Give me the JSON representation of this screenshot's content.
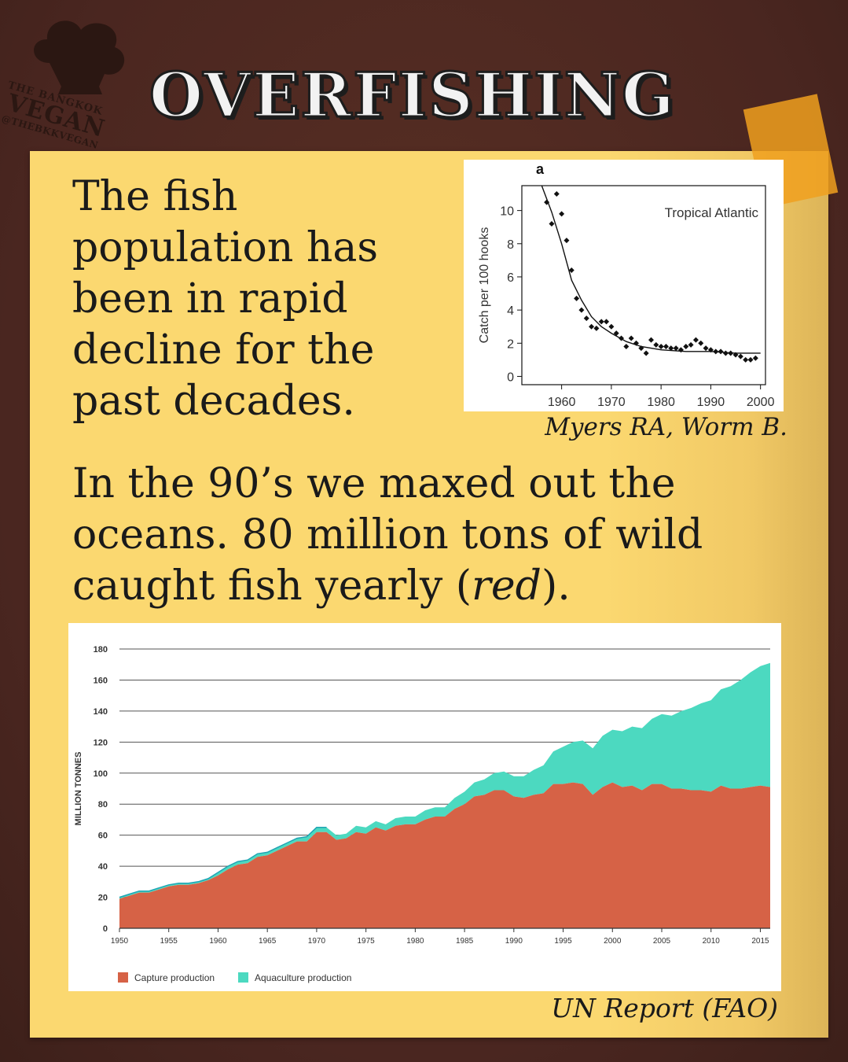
{
  "brand": {
    "line1": "THE BANGKOK",
    "line2": "VEGAN",
    "line3": "@THEBKKVEGAN"
  },
  "title": "OVERFISHING",
  "intro_text": "The fish population has been in rapid decline for the past decades.",
  "credit_top": "Myers RA, Worm B.",
  "main_text_before": "In the 90’s we maxed out the oceans. 80 million tons of wild caught fish yearly (",
  "main_text_em": "red",
  "main_text_after": ").",
  "credit_bottom": "UN Report (FAO)",
  "colors": {
    "frame": "#4a2820",
    "card": "#fbd870",
    "tape": "#f0a01e",
    "capture": "#d66246",
    "aquaculture": "#4cd9c0",
    "aquaculture_line": "#1fa4b4"
  },
  "chart_data": [
    {
      "type": "scatter",
      "panel_label": "a",
      "annotation": "Tropical Atlantic",
      "xlabel": "",
      "ylabel": "Catch per 100 hooks",
      "xlim": [
        1952,
        2001
      ],
      "ylim": [
        -0.5,
        11.5
      ],
      "xticks": [
        1960,
        1970,
        1980,
        1990,
        2000
      ],
      "yticks": [
        0,
        2,
        4,
        6,
        8,
        10
      ],
      "points": {
        "x": [
          1957,
          1958,
          1959,
          1960,
          1961,
          1962,
          1963,
          1964,
          1965,
          1966,
          1967,
          1968,
          1969,
          1970,
          1971,
          1972,
          1973,
          1974,
          1975,
          1976,
          1977,
          1978,
          1979,
          1980,
          1981,
          1982,
          1983,
          1984,
          1985,
          1986,
          1987,
          1988,
          1989,
          1990,
          1991,
          1992,
          1993,
          1994,
          1995,
          1996,
          1997,
          1998,
          1999
        ],
        "y": [
          10.5,
          9.2,
          11.0,
          9.8,
          8.2,
          6.4,
          4.7,
          4.0,
          3.5,
          3.0,
          2.9,
          3.3,
          3.3,
          3.0,
          2.6,
          2.3,
          1.8,
          2.3,
          2.0,
          1.7,
          1.4,
          2.2,
          1.9,
          1.8,
          1.8,
          1.7,
          1.7,
          1.6,
          1.8,
          1.9,
          2.2,
          2.0,
          1.7,
          1.6,
          1.5,
          1.5,
          1.4,
          1.4,
          1.3,
          1.2,
          1.0,
          1.0,
          1.1
        ]
      },
      "fit_curve": {
        "x": [
          1956,
          1958,
          1960,
          1962,
          1964,
          1966,
          1968,
          1970,
          1973,
          1976,
          1980,
          1985,
          1990,
          1995,
          2000
        ],
        "y": [
          11.5,
          9.9,
          8.0,
          5.8,
          4.6,
          3.6,
          3.0,
          2.6,
          2.1,
          1.8,
          1.6,
          1.5,
          1.5,
          1.4,
          1.4
        ]
      }
    },
    {
      "type": "area",
      "xlabel": "",
      "ylabel": "MILLION TONNES",
      "xlim": [
        1950,
        2016
      ],
      "ylim": [
        0,
        180
      ],
      "xticks": [
        1950,
        1955,
        1960,
        1965,
        1970,
        1975,
        1980,
        1985,
        1990,
        1995,
        2000,
        2005,
        2010,
        2015
      ],
      "yticks": [
        0,
        20,
        40,
        60,
        80,
        100,
        120,
        140,
        160,
        180
      ],
      "stacked": true,
      "x": [
        1950,
        1951,
        1952,
        1953,
        1954,
        1955,
        1956,
        1957,
        1958,
        1959,
        1960,
        1961,
        1962,
        1963,
        1964,
        1965,
        1966,
        1967,
        1968,
        1969,
        1970,
        1971,
        1972,
        1973,
        1974,
        1975,
        1976,
        1977,
        1978,
        1979,
        1980,
        1981,
        1982,
        1983,
        1984,
        1985,
        1986,
        1987,
        1988,
        1989,
        1990,
        1991,
        1992,
        1993,
        1994,
        1995,
        1996,
        1997,
        1998,
        1999,
        2000,
        2001,
        2002,
        2003,
        2004,
        2005,
        2006,
        2007,
        2008,
        2009,
        2010,
        2011,
        2012,
        2013,
        2014,
        2015,
        2016
      ],
      "series": [
        {
          "name": "Capture production",
          "values": [
            19,
            21,
            23,
            23,
            25,
            27,
            28,
            28,
            29,
            31,
            34,
            38,
            41,
            42,
            46,
            47,
            50,
            53,
            56,
            56,
            62,
            62,
            57,
            58,
            62,
            61,
            65,
            63,
            66,
            67,
            67,
            70,
            72,
            72,
            77,
            80,
            85,
            86,
            89,
            89,
            85,
            84,
            86,
            87,
            93,
            93,
            94,
            93,
            86,
            91,
            94,
            91,
            92,
            89,
            93,
            93,
            90,
            90,
            89,
            89,
            88,
            92,
            90,
            90,
            91,
            92,
            91
          ]
        },
        {
          "name": "Aquaculture production",
          "values": [
            1,
            1,
            1,
            1,
            1,
            1,
            1,
            1,
            1,
            1,
            2,
            2,
            2,
            2,
            2,
            2,
            2,
            2,
            2,
            3,
            3,
            3,
            3,
            3,
            4,
            4,
            4,
            4,
            5,
            5,
            5,
            6,
            6,
            6,
            7,
            8,
            9,
            10,
            11,
            12,
            13,
            14,
            16,
            18,
            21,
            24,
            26,
            28,
            30,
            33,
            34,
            36,
            38,
            40,
            42,
            45,
            47,
            50,
            53,
            56,
            59,
            62,
            66,
            70,
            74,
            77,
            80
          ]
        }
      ]
    }
  ]
}
